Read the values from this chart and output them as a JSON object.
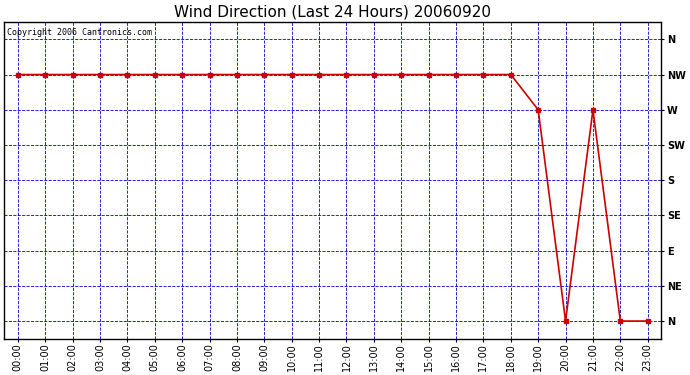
{
  "title": "Wind Direction (Last 24 Hours) 20060920",
  "copyright_text": "Copyright 2006 Cantronics.com",
  "background_color": "#ffffff",
  "plot_bg_color": "#ffffff",
  "line_color": "#cc0000",
  "marker_color": "#cc0000",
  "grid_color": "#0000cc",
  "border_color": "#000000",
  "x_labels": [
    "00:00",
    "01:00",
    "02:00",
    "03:00",
    "04:00",
    "05:00",
    "06:00",
    "07:00",
    "08:00",
    "09:00",
    "10:00",
    "11:00",
    "12:00",
    "13:00",
    "14:00",
    "15:00",
    "16:00",
    "17:00",
    "18:00",
    "19:00",
    "20:00",
    "21:00",
    "22:00",
    "23:00"
  ],
  "y_labels": [
    "N",
    "NW",
    "W",
    "SW",
    "S",
    "SE",
    "E",
    "NE",
    "N"
  ],
  "y_ticks": [
    8,
    7,
    6,
    5,
    4,
    3,
    2,
    1,
    0
  ],
  "hours": [
    0,
    1,
    2,
    3,
    4,
    5,
    6,
    7,
    8,
    9,
    10,
    11,
    12,
    13,
    14,
    15,
    16,
    17,
    18,
    19,
    20,
    21,
    22,
    23
  ],
  "wind_data": [
    7,
    7,
    7,
    7,
    7,
    7,
    7,
    7,
    7,
    7,
    7,
    7,
    7,
    7,
    7,
    7,
    7,
    7,
    7,
    6,
    0,
    6,
    0,
    0
  ],
  "title_fontsize": 11,
  "tick_fontsize": 7,
  "copyright_fontsize": 6
}
